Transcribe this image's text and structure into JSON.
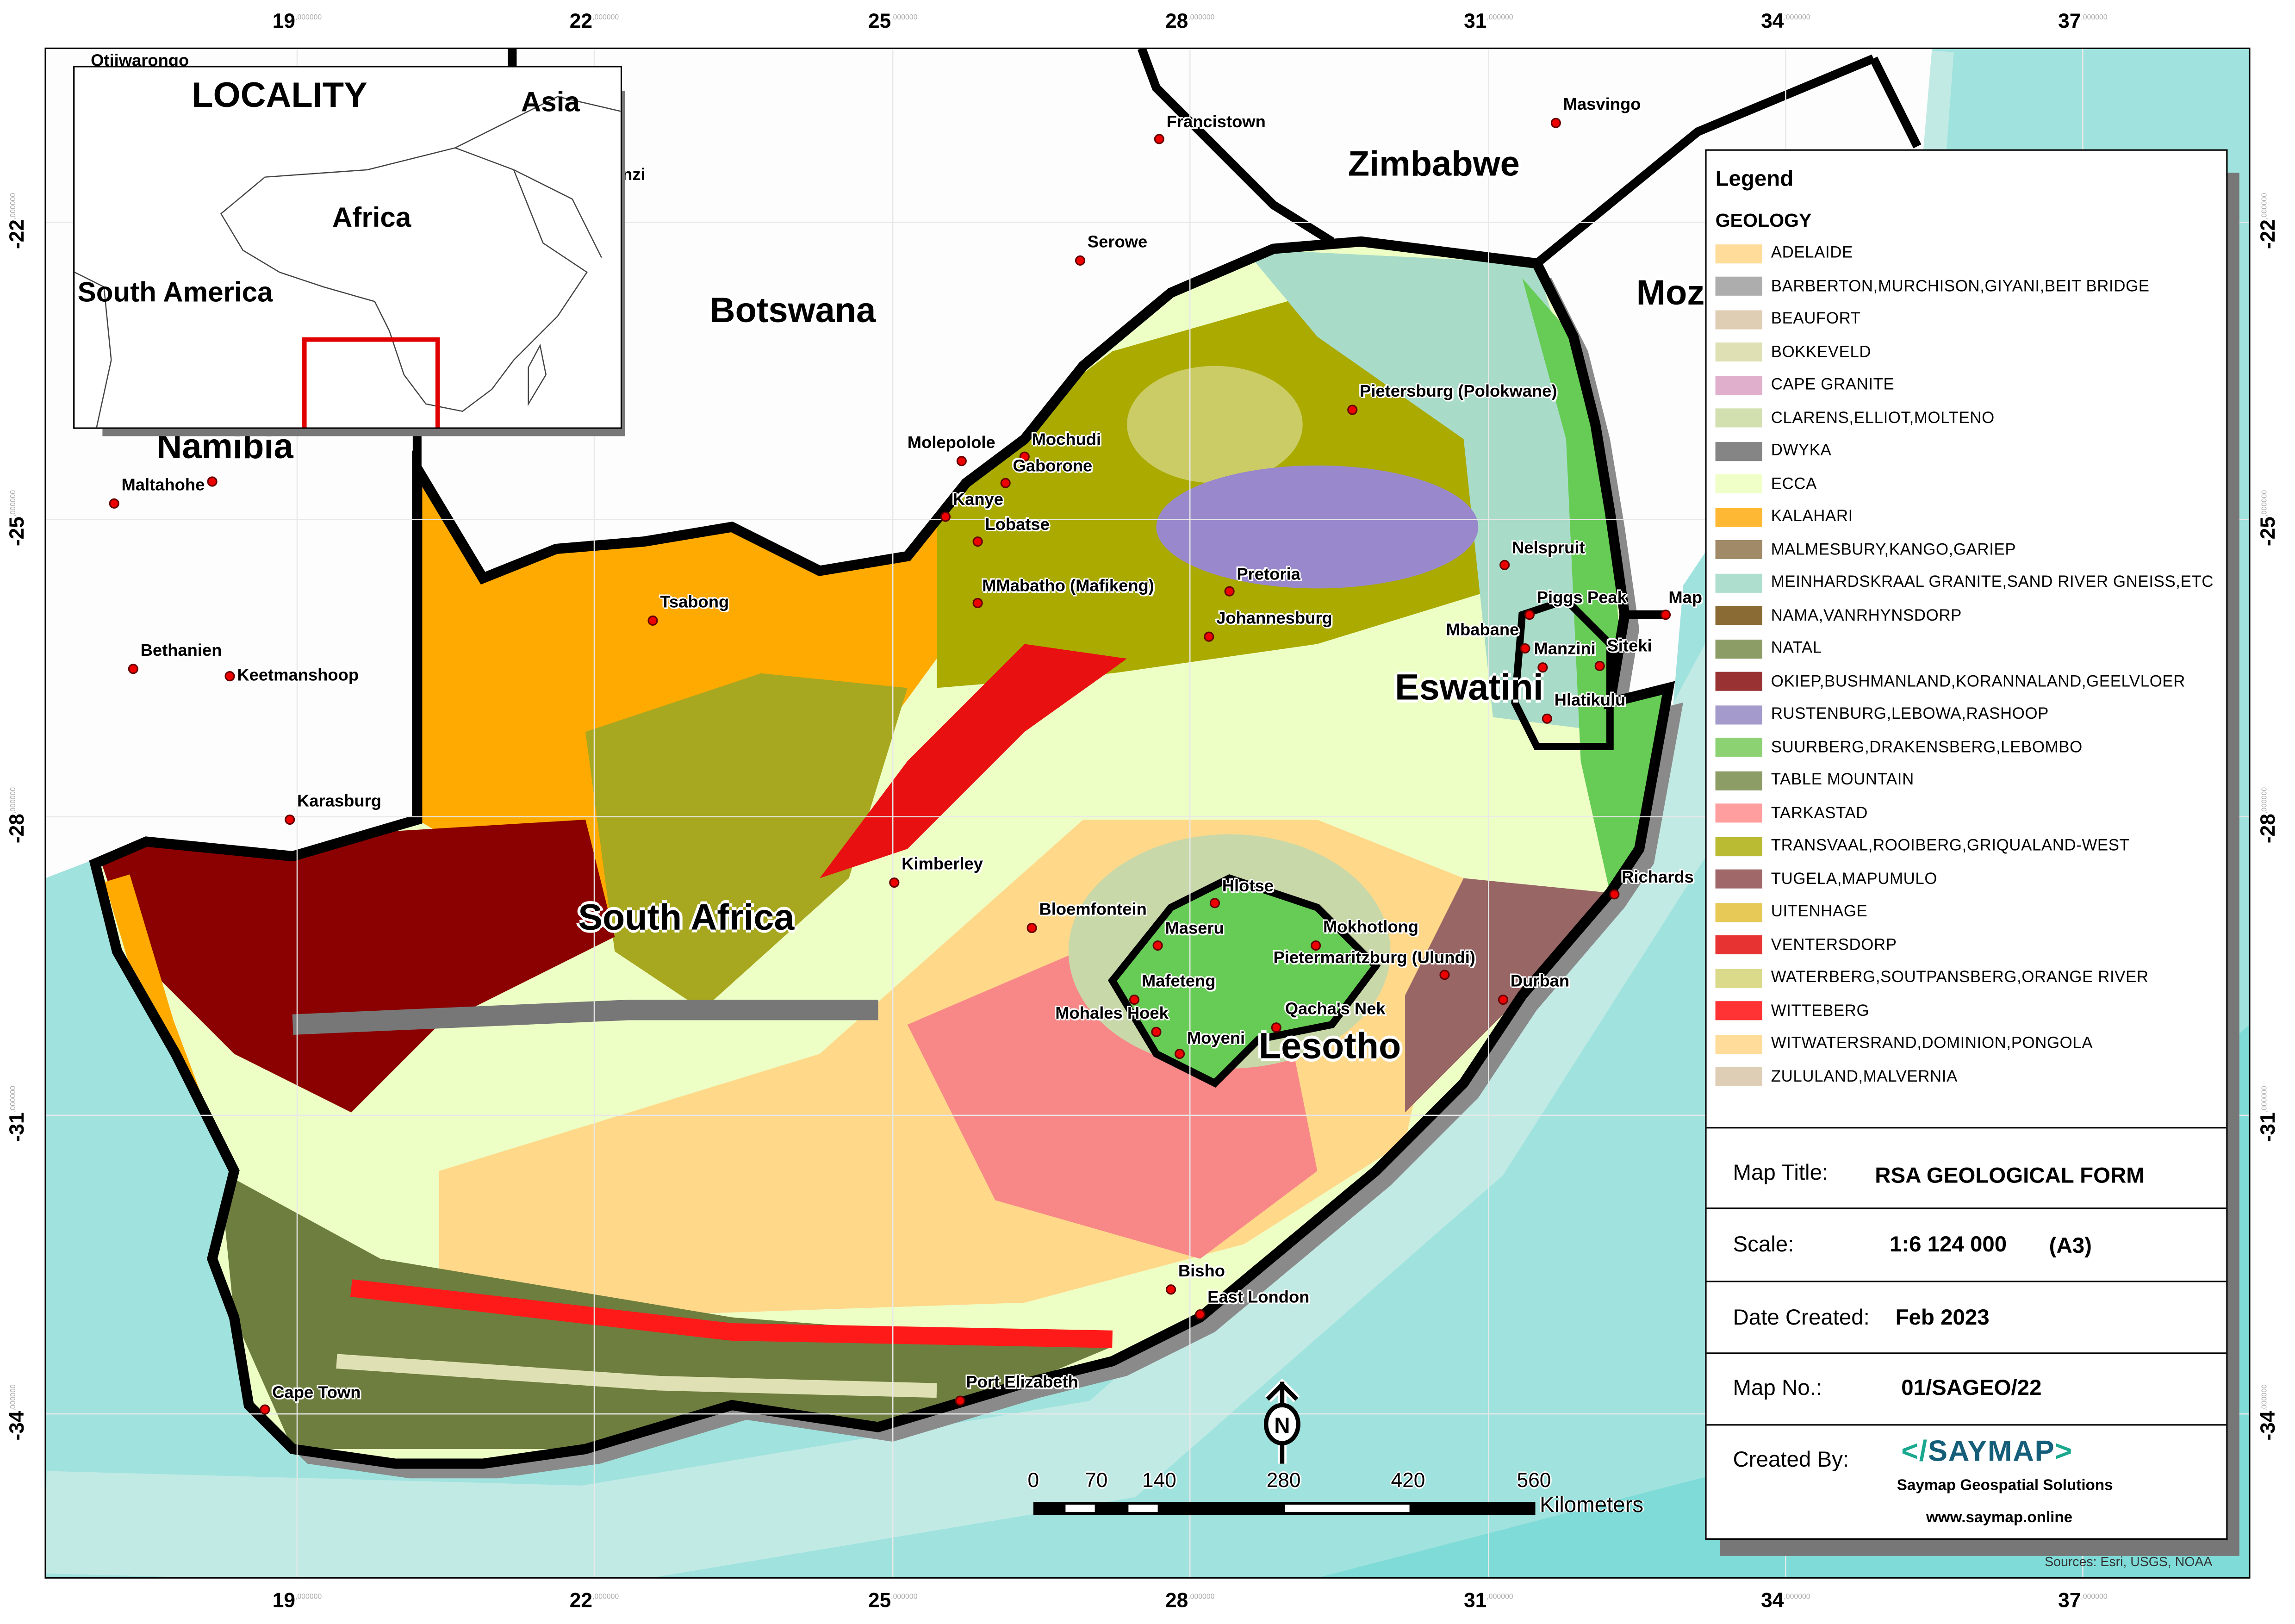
{
  "grid": {
    "longitudes": [
      "19",
      "22",
      "25",
      "28",
      "31",
      "34",
      "37"
    ],
    "latitudes": [
      "-22",
      "-25",
      "-28",
      "-31",
      "-34"
    ],
    "suffix": ",000000"
  },
  "countries": {
    "namibia": "Namibia",
    "botswana": "Botswana",
    "zimbabwe": "Zimbabwe",
    "mozambique": "Moz",
    "south_africa": "South Africa",
    "lesotho": "Lesotho",
    "eswatini": "Eswatini"
  },
  "cities": [
    "Otjiwarongo",
    "Francistown",
    "Masvingo",
    "Serowe",
    "Pietersburg (Polokwane)",
    "Molepolole",
    "Mochudi",
    "Gaborone",
    "Kanye",
    "Lobatse",
    "MMabatho (Mafikeng)",
    "Pretoria",
    "Johannesburg",
    "Nelspruit",
    "Piggs Peak",
    "Mbabane",
    "Manzini",
    "Siteki",
    "Hlatikulu",
    "Map",
    "Tsabong",
    "Maltahohe",
    "Bethanien",
    "Keetmanshoop",
    "Karasburg",
    "Kimberley",
    "Bloemfontein",
    "Hlotse",
    "Maseru",
    "Mokhotlong",
    "Pietermaritzburg (Ulundi)",
    "Mafeteng",
    "Mohales Hoek",
    "Qacha's Nek",
    "Moyeni",
    "Durban",
    "Richards",
    "Bisho",
    "East London",
    "Port Elizabeth",
    "Cape Town",
    "nzi"
  ],
  "inset": {
    "title": "LOCALITY",
    "labels": {
      "asia": "Asia",
      "africa": "Africa",
      "south_america": "South America"
    },
    "extent_color": "#e00000"
  },
  "legend": {
    "title": "Legend",
    "subtitle": "GEOLOGY",
    "items": [
      {
        "label": "ADELAIDE",
        "color": "#FFDC9A"
      },
      {
        "label": "BARBERTON,MURCHISON,GIYANI,BEIT BRIDGE",
        "color": "#ADADAD"
      },
      {
        "label": "BEAUFORT",
        "color": "#DFCEB3"
      },
      {
        "label": "BOKKEVELD",
        "color": "#E0E0B5"
      },
      {
        "label": "CAPE GRANITE",
        "color": "#DFAFCB"
      },
      {
        "label": "CLARENS,ELLIOT,MOLTENO",
        "color": "#D2E0B0"
      },
      {
        "label": "DWYKA",
        "color": "#858585"
      },
      {
        "label": "ECCA",
        "color": "#F0FFC8"
      },
      {
        "label": "KALAHARI",
        "color": "#FFB833"
      },
      {
        "label": "MALMESBURY,KANGO,GARIEP",
        "color": "#A08A68"
      },
      {
        "label": "MEINHARDSKRAAL GRANITE,SAND RIVER GNEISS,ETC",
        "color": "#AEDFCE"
      },
      {
        "label": "NAMA,VANRHYNSDORP",
        "color": "#8A6B33"
      },
      {
        "label": "NATAL",
        "color": "#8C9E66"
      },
      {
        "label": "OKIEP,BUSHMANLAND,KORANNALAND,GEELVLOER",
        "color": "#993333"
      },
      {
        "label": "RUSTENBURG,LEBOWA,RASHOOP",
        "color": "#A59ACC"
      },
      {
        "label": "SUURBERG,DRAKENSBERG,LEBOMBO",
        "color": "#8CD273"
      },
      {
        "label": "TABLE MOUNTAIN",
        "color": "#8C9E66"
      },
      {
        "label": "TARKASTAD",
        "color": "#FF9E9E"
      },
      {
        "label": "TRANSVAAL,ROOIBERG,GRIQUALAND-WEST",
        "color": "#BABA33"
      },
      {
        "label": "TUGELA,MAPUMULO",
        "color": "#A06868"
      },
      {
        "label": "UITENHAGE",
        "color": "#E6C957"
      },
      {
        "label": "VENTERSDORP",
        "color": "#E83333"
      },
      {
        "label": "WATERBERG,SOUTPANSBERG,ORANGE RIVER",
        "color": "#DADA8A"
      },
      {
        "label": "WITTEBERG",
        "color": "#FF3333"
      },
      {
        "label": "WITWATERSRAND,DOMINION,PONGOLA",
        "color": "#FFDC9A"
      },
      {
        "label": "ZULULAND,MALVERNIA",
        "color": "#DDCEB5"
      }
    ]
  },
  "titleblock": {
    "map_title_label": "Map Title:",
    "map_title": "RSA GEOLOGICAL FORM",
    "scale_label": "Scale:",
    "scale": "1:6 124 000",
    "paper": "(A3)",
    "date_label": "Date Created:",
    "date": "Feb 2023",
    "mapno_label": "Map No.:",
    "mapno": "01/SAGEO/22",
    "created_label": "Created By:",
    "logo": "</SAYMAP>",
    "company": "Saymap Geospatial  Solutions",
    "website": "www.saymap.online",
    "logo_colors": {
      "bracket": "#1aa88f",
      "text": "#155e7a"
    }
  },
  "scalebar": {
    "ticks": [
      "0",
      "70",
      "140",
      "280",
      "420",
      "560"
    ],
    "unit": "Kilometers"
  },
  "north_arrow": "N",
  "sources": "Sources: Esri, USGS, NOAA",
  "colors": {
    "ocean": "#7FDBD8",
    "shelf": "#C2EAE5",
    "land_outside": "#FFFFFF",
    "city_dot": "#E00000"
  }
}
